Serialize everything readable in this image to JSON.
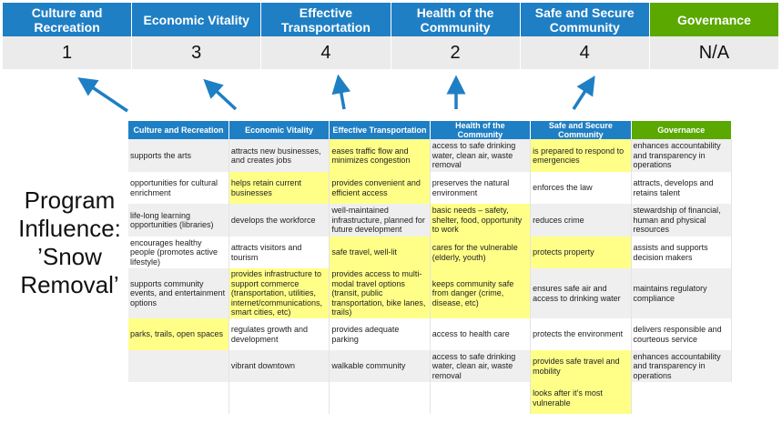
{
  "summary": {
    "headers": [
      "Culture and Recreation",
      "Economic Vitality",
      "Effective Transportation",
      "Health of the Community",
      "Safe and Secure Community",
      "Governance"
    ],
    "values": [
      "1",
      "3",
      "4",
      "2",
      "4",
      "N/A"
    ]
  },
  "title": "Program Influence: ’Snow Removal’",
  "colors": {
    "header_blue": "#1f7fc4",
    "governance_green": "#5aa800",
    "highlight": "#ffff88",
    "arrow": "#1f7fc4"
  },
  "table": {
    "headers": [
      "Culture and Recreation",
      "Economic Vitality",
      "Effective Transportation",
      "Health of the Community",
      "Safe and Secure Community",
      "Governance"
    ],
    "rows": [
      {
        "cells": [
          "supports the arts",
          "attracts new businesses, and creates jobs",
          "eases traffic flow and minimizes congestion",
          "access to safe drinking water, clean air, waste removal",
          "is prepared to respond to emergencies",
          "enhances accountability and transparency in operations"
        ],
        "highlighted": [
          false,
          false,
          true,
          false,
          true,
          false
        ]
      },
      {
        "cells": [
          "opportunities for cultural enrichment",
          "helps retain current businesses",
          "provides convenient and efficient access",
          "preserves the natural environment",
          "enforces the law",
          "attracts, develops and retains talent"
        ],
        "highlighted": [
          false,
          true,
          true,
          false,
          false,
          false
        ]
      },
      {
        "cells": [
          "life-long learning opportunities (libraries)",
          "develops the workforce",
          "well-maintained infrastructure, planned for future development",
          "basic needs – safety, shelter, food, opportunity to work",
          "reduces crime",
          "stewardship of financial, human and physical resources"
        ],
        "highlighted": [
          false,
          false,
          false,
          true,
          false,
          false
        ]
      },
      {
        "cells": [
          "encourages healthy people (promotes active lifestyle)",
          "attracts visitors and tourism",
          "safe travel, well-lit",
          "cares for the vulnerable (elderly, youth)",
          "protects property",
          "assists and supports decision makers"
        ],
        "highlighted": [
          false,
          false,
          true,
          true,
          true,
          false
        ]
      },
      {
        "cells": [
          "supports community events, and entertainment options",
          "provides infrastructure to support commerce (transportation, utilities, internet/communications, smart cities, etc)",
          "provides access to multi-modal travel options (transit, public transportation, bike lanes, trails)",
          "keeps community safe from danger (crime, disease, etc)",
          "ensures safe air and access to drinking water",
          "maintains regulatory compliance"
        ],
        "highlighted": [
          false,
          true,
          true,
          true,
          false,
          false
        ]
      },
      {
        "cells": [
          "parks, trails, open spaces",
          "regulates growth and development",
          "provides adequate parking",
          "access to health care",
          "protects the environment",
          "delivers responsible and courteous service"
        ],
        "highlighted": [
          true,
          false,
          false,
          false,
          false,
          false
        ]
      },
      {
        "cells": [
          "",
          "vibrant downtown",
          "walkable community",
          "access to safe drinking water, clean air, waste removal",
          "provides safe travel and mobility",
          "enhances accountability and transparency in operations"
        ],
        "highlighted": [
          false,
          false,
          false,
          false,
          true,
          false
        ]
      },
      {
        "cells": [
          "",
          "",
          "",
          "",
          "looks after it's most vulnerable",
          ""
        ],
        "highlighted": [
          false,
          false,
          false,
          false,
          true,
          false
        ]
      }
    ]
  }
}
